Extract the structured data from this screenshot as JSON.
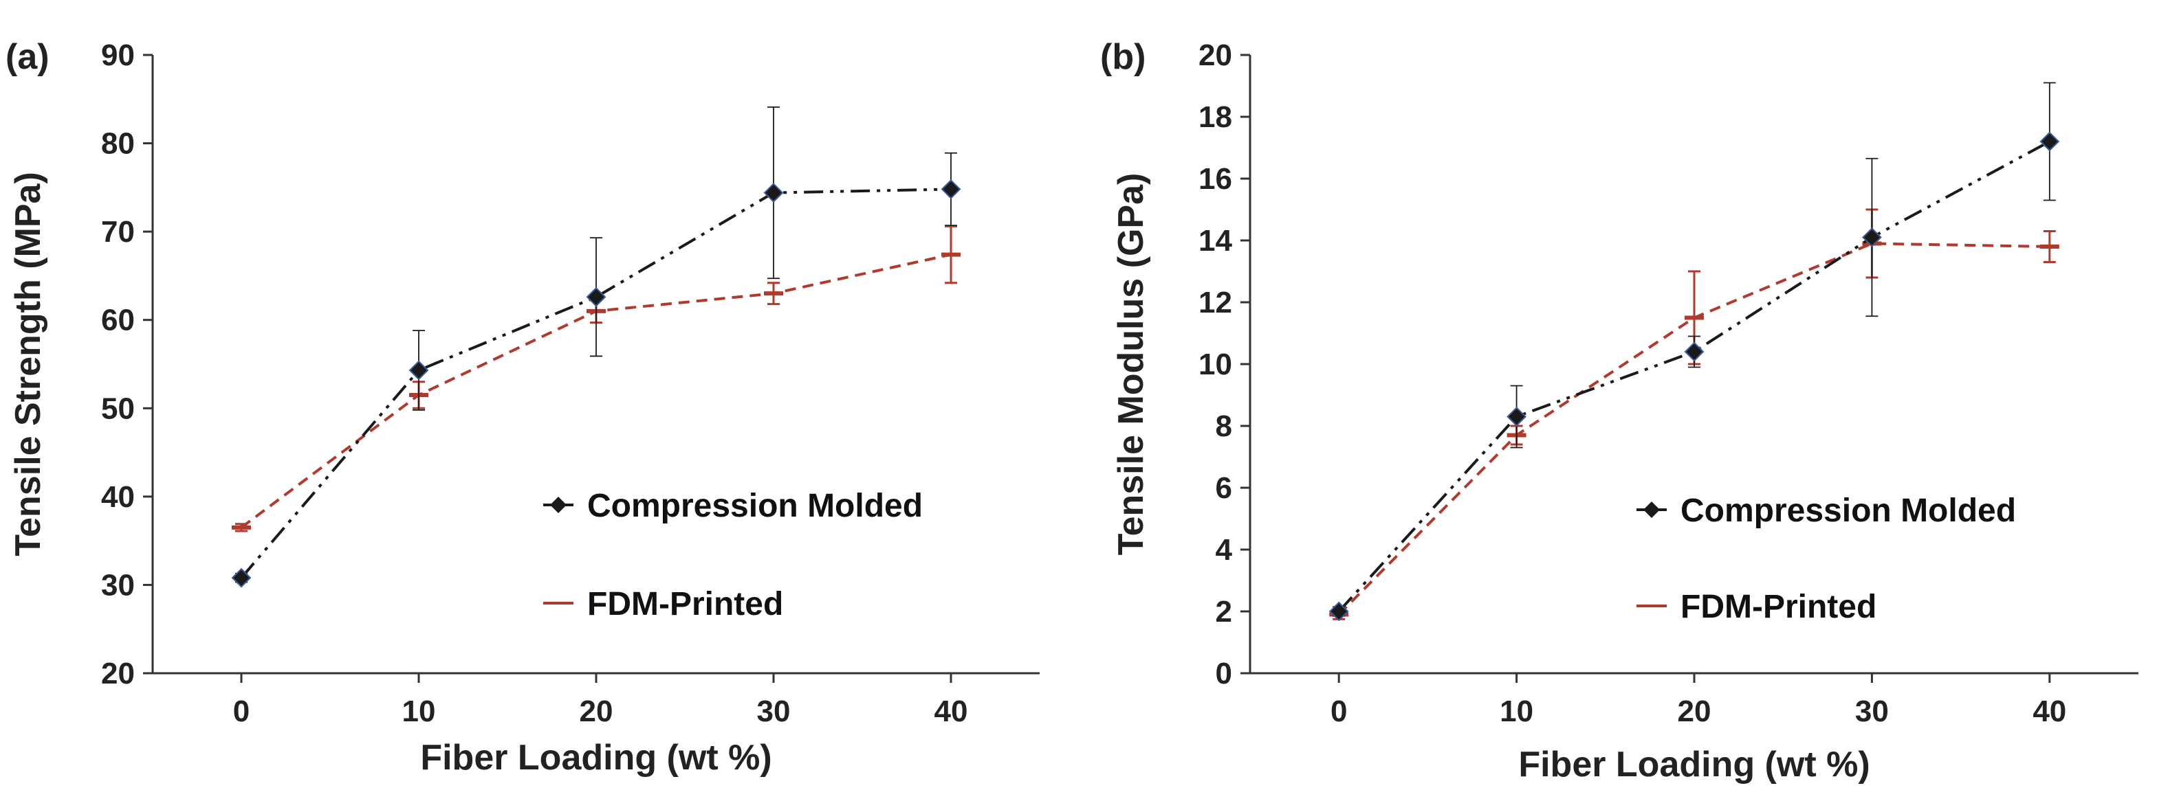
{
  "chart_data": [
    {
      "type": "line",
      "panel_label": "(a)",
      "xlabel": "Fiber Loading (wt %)",
      "ylabel": "Tensile Strength (MPa)",
      "x": [
        0,
        10,
        20,
        30,
        40
      ],
      "xticks": [
        0,
        10,
        20,
        30,
        40
      ],
      "xlim": [
        -5,
        45
      ],
      "ylim": [
        20,
        90
      ],
      "yticks": [
        20,
        30,
        40,
        50,
        60,
        70,
        80,
        90
      ],
      "legend_position": "lower-right",
      "series": [
        {
          "name": "Compression Molded",
          "color": "#1a1a1a",
          "marker": "diamond",
          "line_style": "dash-dot-dot",
          "values": [
            30.8,
            54.3,
            62.6,
            74.4,
            74.8
          ],
          "err": [
            0.5,
            4.5,
            6.7,
            9.7,
            4.1
          ]
        },
        {
          "name": "FDM-Printed",
          "color": "#b03a2e",
          "marker": "dash",
          "line_style": "dashed",
          "values": [
            36.5,
            51.5,
            61.0,
            63.0,
            67.4
          ],
          "err": [
            0.4,
            1.5,
            1.3,
            1.2,
            3.2
          ]
        }
      ]
    },
    {
      "type": "line",
      "panel_label": "(b)",
      "xlabel": "Fiber Loading (wt %)",
      "ylabel": "Tensile Modulus (GPa)",
      "x": [
        0,
        10,
        20,
        30,
        40
      ],
      "xticks": [
        0,
        10,
        20,
        30,
        40
      ],
      "xlim": [
        -5,
        45
      ],
      "ylim": [
        0,
        20
      ],
      "yticks": [
        0,
        2,
        4,
        6,
        8,
        10,
        12,
        14,
        16,
        18,
        20
      ],
      "legend_position": "lower-right",
      "series": [
        {
          "name": "Compression Molded",
          "color": "#1a1a1a",
          "marker": "diamond",
          "line_style": "dash-dot-dot",
          "values": [
            2.0,
            8.3,
            10.4,
            14.1,
            17.2
          ],
          "err": [
            0.15,
            1.0,
            0.5,
            2.55,
            1.9
          ]
        },
        {
          "name": "FDM-Printed",
          "color": "#b03a2e",
          "marker": "dash",
          "line_style": "dashed",
          "values": [
            1.9,
            7.7,
            11.5,
            13.9,
            13.8
          ],
          "err": [
            0.15,
            0.3,
            1.5,
            1.1,
            0.5
          ]
        }
      ]
    }
  ]
}
